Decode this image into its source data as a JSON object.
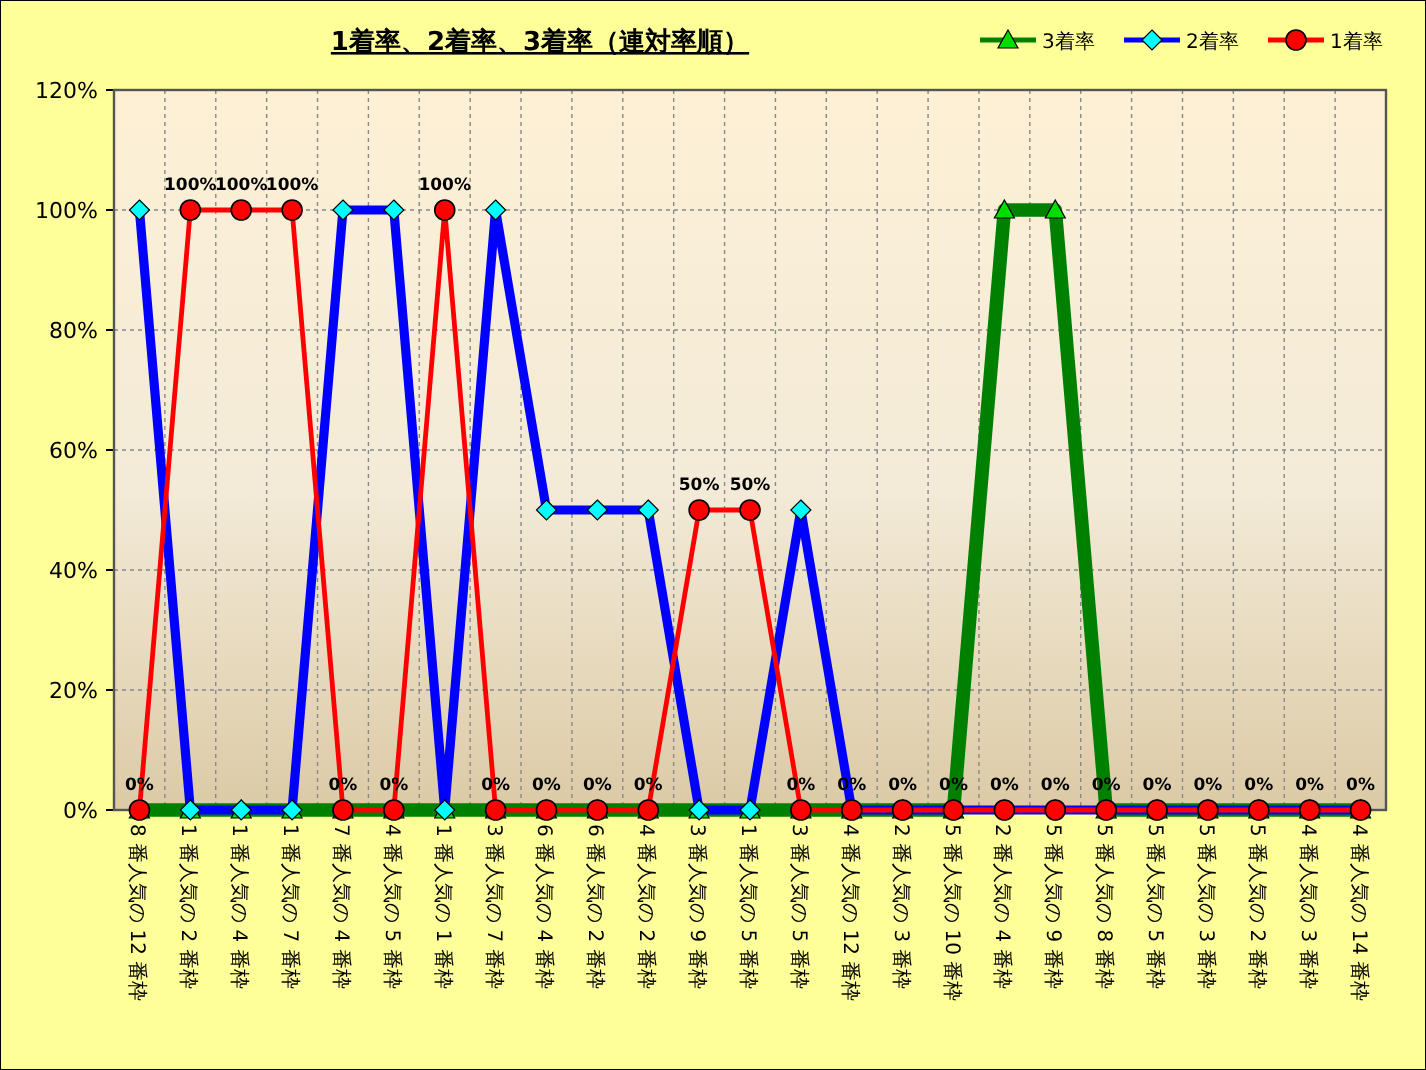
{
  "chart_data": {
    "type": "line",
    "title": "1着率、2着率、3着率（連対率順）",
    "categories": [
      "8 番人気の 12 番枠",
      "1 番人気の 2 番枠",
      "1 番人気の 4 番枠",
      "1 番人気の 7 番枠",
      "7 番人気の 4 番枠",
      "4 番人気の 5 番枠",
      "1 番人気の 1 番枠",
      "3 番人気の 7 番枠",
      "6 番人気の 4 番枠",
      "6 番人気の 2 番枠",
      "4 番人気の 2 番枠",
      "3 番人気の 9 番枠",
      "1 番人気の 5 番枠",
      "3 番人気の 5 番枠",
      "4 番人気の 12 番枠",
      "2 番人気の 3 番枠",
      "5 番人気の 10 番枠",
      "2 番人気の 4 番枠",
      "5 番人気の 9 番枠",
      "5 番人気の 8 番枠",
      "5 番人気の 5 番枠",
      "5 番人気の 3 番枠",
      "5 番人気の 2 番枠",
      "4 番人気の 3 番枠",
      "4 番人気の 14 番枠"
    ],
    "series": [
      {
        "name": "3着率",
        "color": "#008000",
        "marker": "triangle",
        "values": [
          0,
          0,
          0,
          0,
          0,
          0,
          0,
          0,
          0,
          0,
          0,
          0,
          0,
          0,
          0,
          0,
          0,
          100,
          100,
          0,
          0,
          0,
          0,
          0,
          0
        ]
      },
      {
        "name": "2着率",
        "color": "#0000ff",
        "marker": "diamond",
        "values": [
          100,
          0,
          0,
          0,
          100,
          100,
          0,
          100,
          50,
          50,
          50,
          0,
          0,
          50,
          0,
          0,
          0,
          0,
          0,
          0,
          0,
          0,
          0,
          0,
          0
        ]
      },
      {
        "name": "1着率",
        "color": "#ff0000",
        "marker": "circle",
        "values": [
          0,
          100,
          100,
          100,
          0,
          0,
          100,
          0,
          0,
          0,
          0,
          50,
          50,
          0,
          0,
          0,
          0,
          0,
          0,
          0,
          0,
          0,
          0,
          0,
          0
        ],
        "value_labels": [
          "0%",
          "100%",
          "100%",
          "100%",
          "0%",
          "0%",
          "100%",
          "0%",
          "0%",
          "0%",
          "0%",
          "50%",
          "50%",
          "0%",
          "0%",
          "0%",
          "0%",
          "0%",
          "0%",
          "0%",
          "0%",
          "0%",
          "0%",
          "0%",
          "0%"
        ]
      }
    ],
    "ylim": [
      0,
      120
    ],
    "yticks": [
      {
        "value": 0,
        "label": "0%"
      },
      {
        "value": 20,
        "label": "20%"
      },
      {
        "value": 40,
        "label": "40%"
      },
      {
        "value": 60,
        "label": "60%"
      },
      {
        "value": 80,
        "label": "80%"
      },
      {
        "value": 100,
        "label": "100%"
      },
      {
        "value": 120,
        "label": "120%"
      }
    ],
    "grid": true,
    "legend": "top right"
  }
}
